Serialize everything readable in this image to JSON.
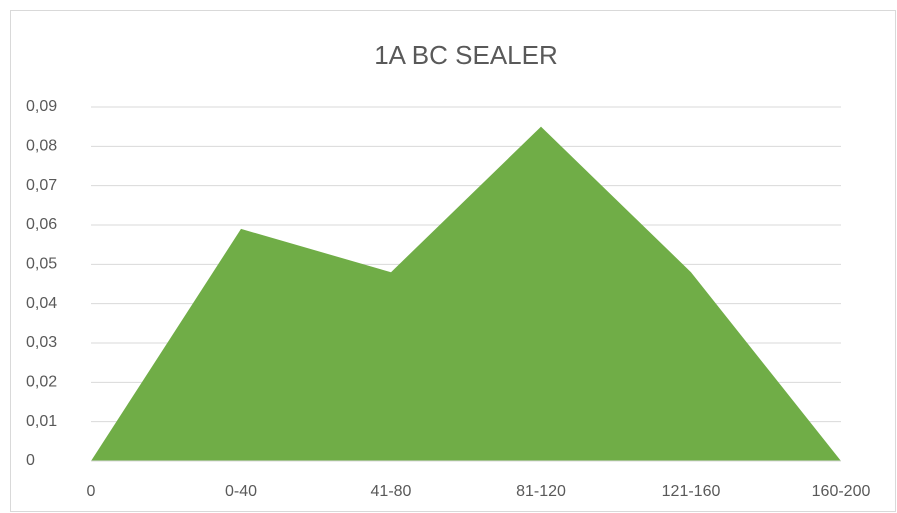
{
  "chart_data": {
    "type": "area",
    "title": "1A BC SEALER",
    "categories": [
      "0",
      "0-40",
      "41-80",
      "81-120",
      "121-160",
      "160-200"
    ],
    "values": [
      0,
      0.059,
      0.048,
      0.085,
      0.048,
      0
    ],
    "color": "#70ad47",
    "ylim": [
      0,
      0.09
    ],
    "yticks": [
      0,
      {
        "value": 0.01,
        "label": "0,01"
      },
      {
        "value": 0.02,
        "label": "0,02"
      },
      {
        "value": 0.03,
        "label": "0,03"
      },
      {
        "value": 0.04,
        "label": "0,04"
      },
      {
        "value": 0.05,
        "label": "0,05"
      },
      {
        "value": 0.06,
        "label": "0,06"
      },
      {
        "value": 0.07,
        "label": "0,07"
      },
      {
        "value": 0.08,
        "label": "0,08"
      },
      {
        "value": 0.09,
        "label": "0,09"
      }
    ],
    "grid": true
  }
}
